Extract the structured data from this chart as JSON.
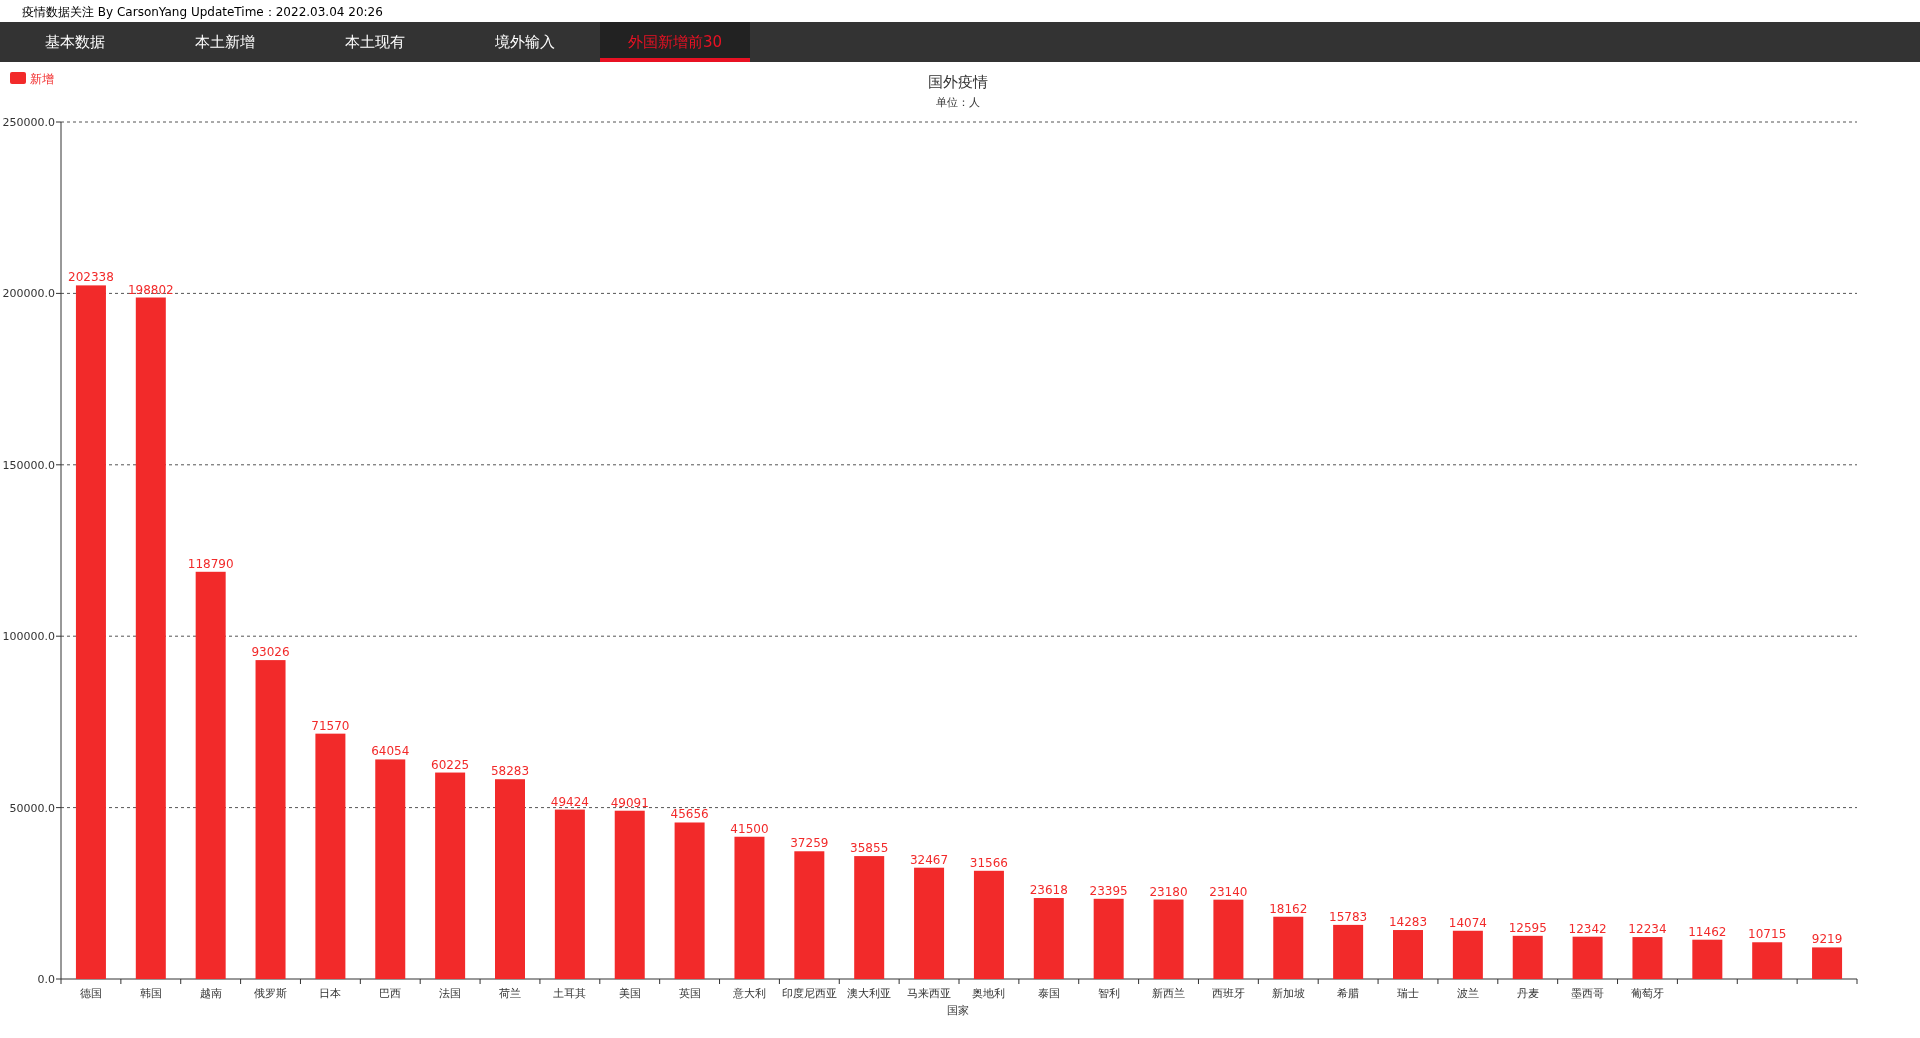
{
  "chart_data": {
    "type": "bar",
    "title": "国外疫情",
    "subtitle": "单位：人",
    "xlabel": "国家",
    "categories": [
      "德国",
      "韩国",
      "越南",
      "俄罗斯",
      "日本",
      "巴西",
      "法国",
      "荷兰",
      "土耳其",
      "美国",
      "英国",
      "意大利",
      "印度尼西亚",
      "澳大利亚",
      "马来西亚",
      "奥地利",
      "泰国",
      "智利",
      "新西兰",
      "西班牙",
      "新加坡",
      "希腊",
      "瑞士",
      "波兰",
      "丹麦",
      "墨西哥",
      "葡萄牙",
      null,
      null,
      null
    ],
    "series": [
      {
        "name": "新增",
        "color": "#f22a2a",
        "values": [
          202338,
          198802,
          118790,
          93026,
          71570,
          64054,
          60225,
          58283,
          49424,
          49091,
          45656,
          41500,
          37259,
          35855,
          32467,
          31566,
          23618,
          23395,
          23180,
          23140,
          18162,
          15783,
          14283,
          14074,
          12595,
          12342,
          12234,
          11462,
          10715,
          9219
        ]
      }
    ],
    "ylim": [
      0,
      250000
    ],
    "yticks": [
      {
        "value": 0,
        "label": "0.0"
      },
      {
        "value": 50000,
        "label": "50000.0"
      },
      {
        "value": 100000,
        "label": "100000.0"
      },
      {
        "value": 150000,
        "label": "150000.0"
      },
      {
        "value": 200000,
        "label": "200000.0"
      },
      {
        "value": 250000,
        "label": "250000.0"
      }
    ],
    "grid": "y",
    "legend": "top left",
    "data_labels": true,
    "annotations": [
      "疫情数据关注 By CarsonYang  UpdateTime：2022.03.04 20:26",
      "基本数据",
      "本土新增",
      "本土现有",
      "境外输入",
      "外国新增前30"
    ]
  }
}
